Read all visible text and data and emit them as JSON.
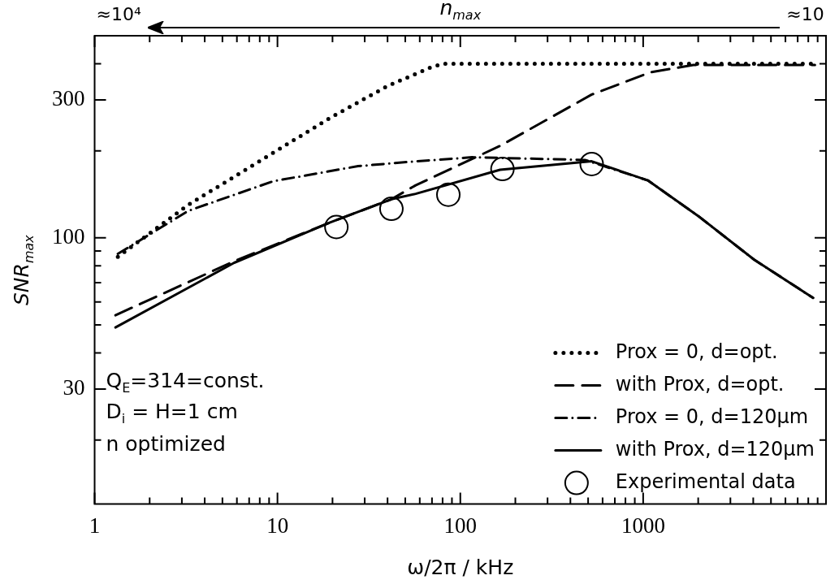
{
  "chart_data": {
    "type": "line",
    "xlabel": "ω/2π / kHz",
    "ylabel": "SNR$_{max}$",
    "log": "xy",
    "grid": false,
    "legend": "bottom right",
    "xlim": [
      1,
      10000
    ],
    "ylim": [
      12,
      500
    ],
    "xticks": [
      1,
      {
        "value": 2,
        "label": null
      },
      {
        "value": 3,
        "label": null
      },
      {
        "value": 4,
        "label": null
      },
      {
        "value": 5,
        "label": null
      },
      {
        "value": 6,
        "label": null
      },
      {
        "value": 7,
        "label": null
      },
      {
        "value": 8,
        "label": null
      },
      {
        "value": 9,
        "label": null
      },
      10,
      {
        "value": 20,
        "label": null
      },
      {
        "value": 30,
        "label": null
      },
      {
        "value": 40,
        "label": null
      },
      {
        "value": 50,
        "label": null
      },
      {
        "value": 60,
        "label": null
      },
      {
        "value": 70,
        "label": null
      },
      {
        "value": 80,
        "label": null
      },
      {
        "value": 90,
        "label": null
      },
      100,
      {
        "value": 200,
        "label": null
      },
      {
        "value": 300,
        "label": null
      },
      {
        "value": 400,
        "label": null
      },
      {
        "value": 500,
        "label": null
      },
      {
        "value": 600,
        "label": null
      },
      {
        "value": 700,
        "label": null
      },
      {
        "value": 800,
        "label": null
      },
      {
        "value": 900,
        "label": null
      },
      1000,
      {
        "value": 2000,
        "label": null
      },
      {
        "value": 3000,
        "label": null
      },
      {
        "value": 4000,
        "label": null
      },
      {
        "value": 5000,
        "label": null
      },
      {
        "value": 6000,
        "label": null
      },
      {
        "value": 7000,
        "label": null
      },
      {
        "value": 8000,
        "label": null
      },
      {
        "value": 9000,
        "label": null
      }
    ],
    "yticks": [
      {
        "value": 20,
        "label": null
      },
      30,
      {
        "value": 40,
        "label": null
      },
      {
        "value": 50,
        "label": null
      },
      {
        "value": 60,
        "label": null
      },
      {
        "value": 70,
        "label": null
      },
      {
        "value": 80,
        "label": null
      },
      {
        "value": 90,
        "label": null
      },
      100,
      {
        "value": 200,
        "label": null
      },
      300,
      {
        "value": 400,
        "label": null
      }
    ],
    "annotations": [
      "≈10⁴",
      "n$_{max}$",
      "≈10",
      "Q$_{E}$=314=const.",
      "D$_{i}$ = H=1 cm",
      "n optimized"
    ],
    "series": [
      {
        "name": "Prox = 0, d=opt.",
        "line_style": "dotted",
        "marker": "none",
        "color": "#000000",
        "x": [
          1.34,
          3.25,
          6.7,
          19.4,
          40,
          68,
          80,
          2000,
          8700
        ],
        "values": [
          86,
          130,
          172,
          260,
          335,
          387,
          400,
          400,
          400
        ]
      },
      {
        "name": "with Prox, d=opt.",
        "line_style": "dashed",
        "marker": "none",
        "color": "#000000",
        "x": [
          1.3,
          5.8,
          19.4,
          42,
          57,
          165,
          523,
          1100,
          1880,
          8700
        ],
        "values": [
          54,
          83,
          113,
          136,
          152,
          208,
          313,
          374,
          396,
          396
        ]
      },
      {
        "name": "Prox = 0, d=120μm",
        "line_style": "dashdot",
        "marker": "none",
        "color": "#000000",
        "x": [
          1.34,
          3.25,
          9.5,
          27.6,
          57,
          116,
          480,
          1060,
          2000,
          4050,
          8500
        ],
        "values": [
          88,
          124,
          157,
          177,
          184,
          190,
          186,
          158,
          119,
          84,
          62
        ]
      },
      {
        "name": "with Prox, d=120μm",
        "line_style": "solid",
        "marker": "none",
        "color": "#000000",
        "x": [
          1.3,
          5.8,
          19.4,
          42,
          57,
          165,
          523,
          1060,
          2000,
          4050,
          8500
        ],
        "values": [
          49,
          82,
          113,
          136,
          142,
          172,
          184,
          158,
          119,
          84,
          62
        ]
      },
      {
        "name": "Experimental data",
        "type": "scatter",
        "marker": "circle",
        "color": "#000000",
        "x": [
          21,
          42,
          86,
          170,
          523
        ],
        "values": [
          109,
          126,
          141,
          173,
          180
        ]
      }
    ]
  }
}
